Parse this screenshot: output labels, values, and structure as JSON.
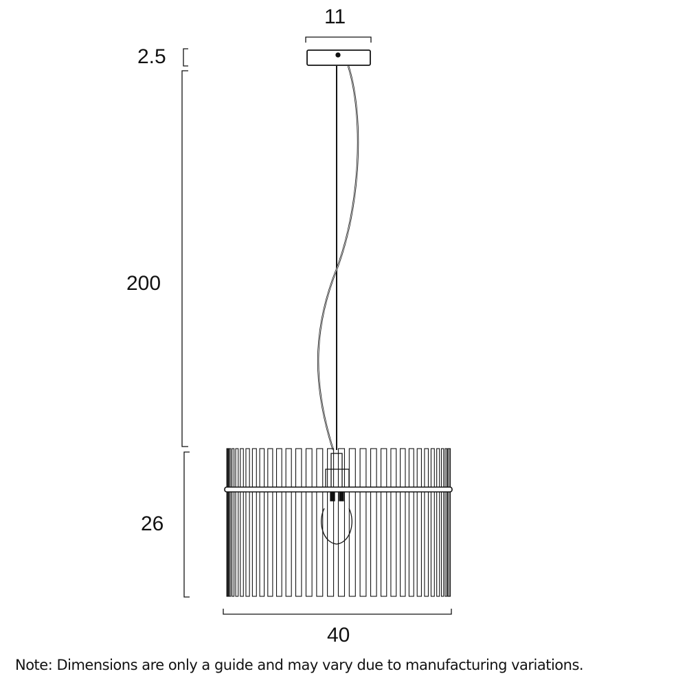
{
  "dimensions": {
    "canopy_width": "11",
    "canopy_height": "2.5",
    "drop_length": "200",
    "shade_height": "26",
    "shade_width": "40"
  },
  "note": "Note: Dimensions are only a guide and may vary due to manufacturing variations.",
  "colors": {
    "line": "#111111",
    "background": "#ffffff"
  }
}
